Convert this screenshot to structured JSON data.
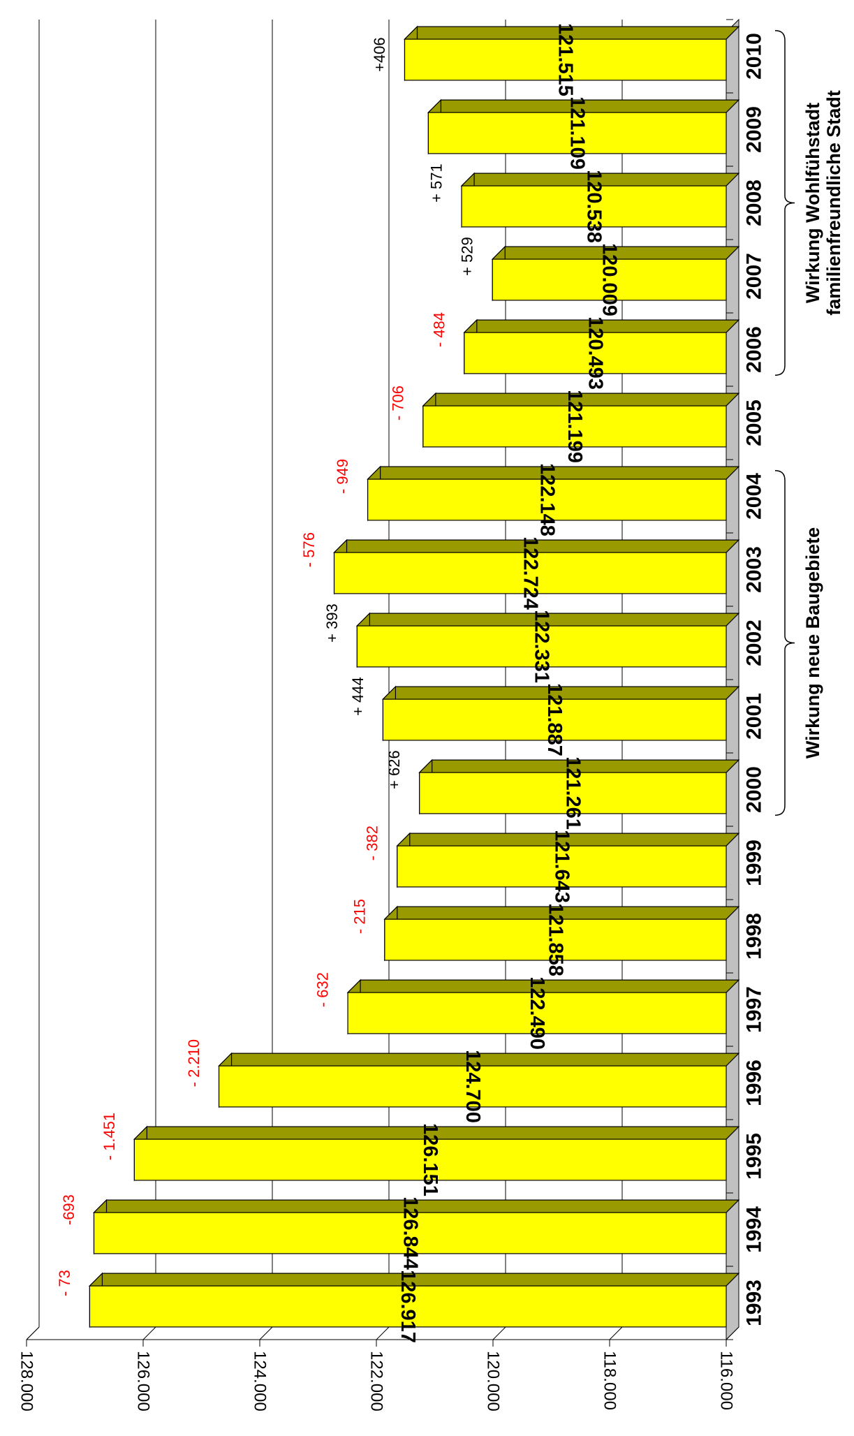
{
  "chart_data": {
    "type": "bar",
    "orientation": "rotated-90",
    "categories": [
      "1993",
      "1994",
      "1995",
      "1996",
      "1997",
      "1998",
      "1999",
      "2000",
      "2001",
      "2002",
      "2003",
      "2004",
      "2005",
      "2006",
      "2007",
      "2008",
      "2009",
      "2010"
    ],
    "series": [
      {
        "values": [
          126917,
          126844,
          126151,
          124700,
          122490,
          121858,
          121643,
          121261,
          121887,
          122331,
          122724,
          122148,
          121199,
          120493,
          120009,
          120538,
          121109,
          121515
        ],
        "value_labels": [
          "126.917",
          "126.844",
          "126.151",
          "124.700",
          "122.490",
          "121.858",
          "121.643",
          "121.261",
          "121.887",
          "122.331",
          "122.724",
          "122.148",
          "121.199",
          "120.493",
          "120.009",
          "120.538",
          "121.109",
          "121.515"
        ],
        "color": "#ffff00"
      }
    ],
    "change_labels": [
      "- 73",
      "-693",
      "- 1.451",
      "- 2.210",
      "- 632",
      "- 215",
      "- 382",
      "+ 626",
      "+ 444",
      "+ 393",
      "- 576",
      "- 949",
      "- 706",
      "- 484",
      "+ 529",
      "+ 571",
      "",
      ""
    ],
    "change_colors": [
      "#ff0000",
      "#ff0000",
      "#ff0000",
      "#ff0000",
      "#ff0000",
      "#ff0000",
      "#ff0000",
      "#000000",
      "#000000",
      "#000000",
      "#ff0000",
      "#ff0000",
      "#ff0000",
      "#ff0000",
      "#000000",
      "#000000",
      "#000000",
      "#000000"
    ],
    "extra_change_label": "+406",
    "ylim": [
      116000,
      128000
    ],
    "yticks": [
      "116.000",
      "118.000",
      "120.000",
      "122.000",
      "124.000",
      "126.000",
      "128.000"
    ],
    "ytick_values": [
      116000,
      118000,
      120000,
      122000,
      124000,
      126000,
      128000
    ],
    "grid": true,
    "annotations": [
      {
        "text_lines": [
          "Wirkung neue Baugebiete"
        ],
        "from": "2000",
        "to": "2004"
      },
      {
        "text_lines": [
          "Wirkung Wohlfühstadt",
          "familienfreundliche Stadt"
        ],
        "from": "2006",
        "to": "2010"
      }
    ],
    "colors": {
      "bar": "#ffff00",
      "bar_side": "#999900",
      "floor": "#c0c0c0",
      "negative": "#ff0000",
      "positive": "#000000"
    }
  }
}
